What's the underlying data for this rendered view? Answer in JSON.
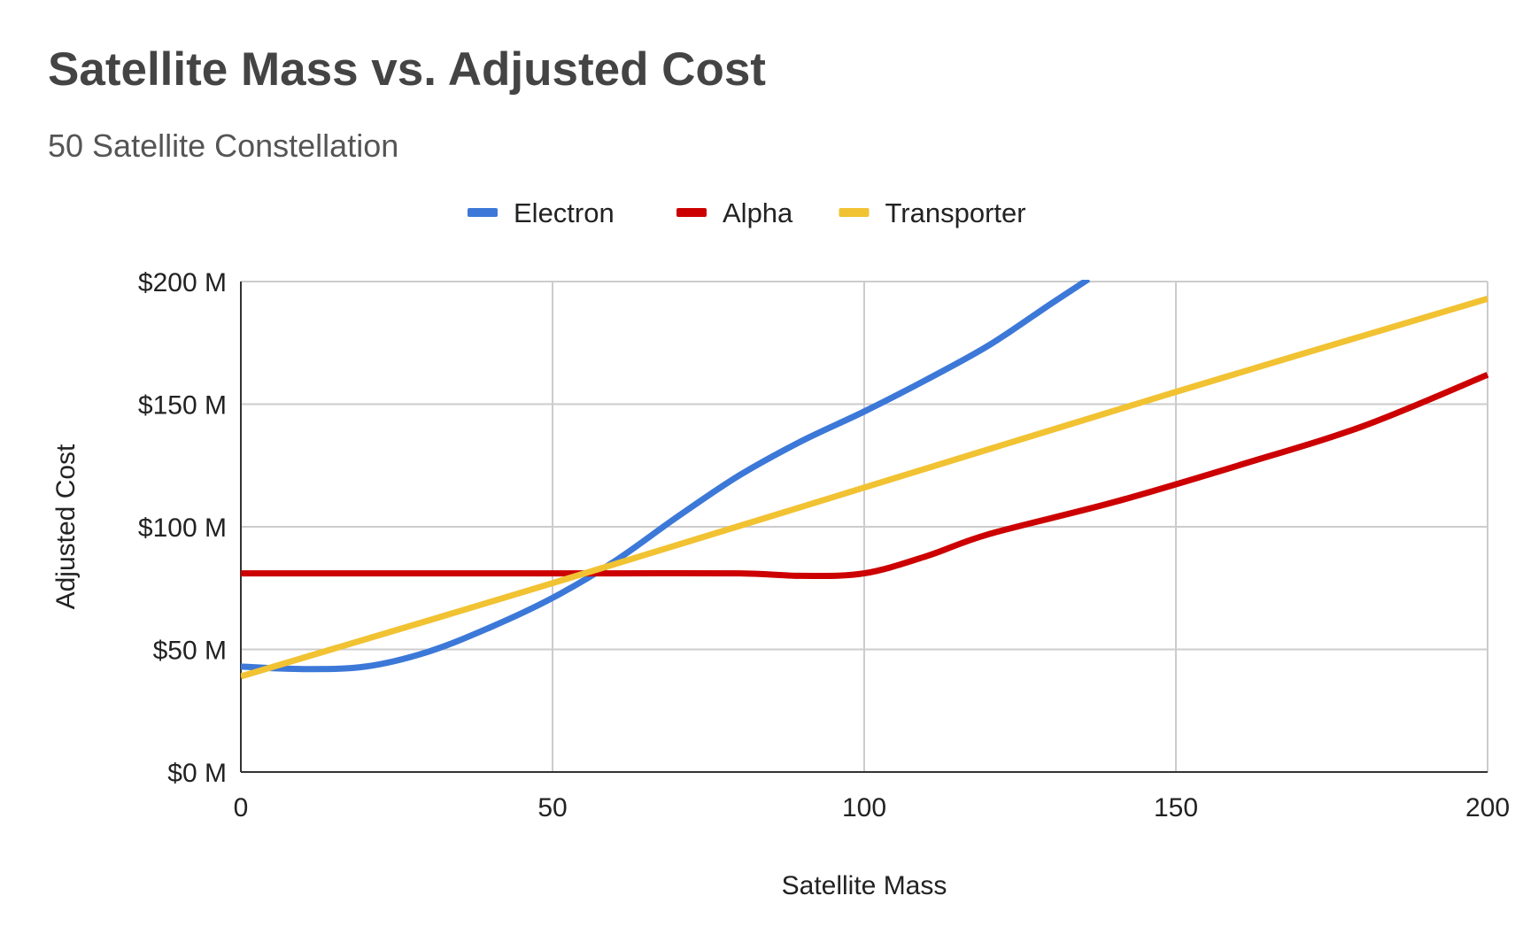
{
  "chart_data": {
    "type": "line",
    "title": "Satellite Mass vs. Adjusted Cost",
    "subtitle": "50 Satellite Constellation",
    "xlabel": "Satellite Mass",
    "ylabel": "Adjusted Cost",
    "xlim": [
      0,
      200
    ],
    "ylim": [
      0,
      200
    ],
    "x_ticks": [
      0,
      50,
      100,
      150,
      200
    ],
    "x_tick_labels": [
      "0",
      "50",
      "100",
      "150",
      "200"
    ],
    "y_ticks": [
      0,
      50,
      100,
      150,
      200
    ],
    "y_tick_labels": [
      "$0 M",
      "$50 M",
      "$100 M",
      "$150 M",
      "$200 M"
    ],
    "grid": true,
    "legend_position": "top-center",
    "series": [
      {
        "name": "Electron",
        "color": "#3c78d8",
        "points": [
          [
            0,
            43
          ],
          [
            10,
            42
          ],
          [
            20,
            43
          ],
          [
            30,
            49
          ],
          [
            40,
            59
          ],
          [
            50,
            71
          ],
          [
            60,
            86
          ],
          [
            70,
            104
          ],
          [
            80,
            121
          ],
          [
            90,
            135
          ],
          [
            100,
            147
          ],
          [
            110,
            160
          ],
          [
            120,
            174
          ],
          [
            130,
            191
          ],
          [
            136,
            201
          ]
        ]
      },
      {
        "name": "Alpha",
        "color": "#cc0000",
        "points": [
          [
            0,
            81
          ],
          [
            20,
            81
          ],
          [
            40,
            81
          ],
          [
            60,
            81
          ],
          [
            80,
            81
          ],
          [
            90,
            80
          ],
          [
            100,
            81
          ],
          [
            110,
            88
          ],
          [
            120,
            97
          ],
          [
            140,
            110
          ],
          [
            160,
            125
          ],
          [
            180,
            141
          ],
          [
            200,
            162
          ]
        ]
      },
      {
        "name": "Transporter",
        "color": "#f1c232",
        "points": [
          [
            0,
            39
          ],
          [
            50,
            77
          ],
          [
            100,
            116
          ],
          [
            150,
            155
          ],
          [
            200,
            193
          ]
        ]
      }
    ]
  }
}
